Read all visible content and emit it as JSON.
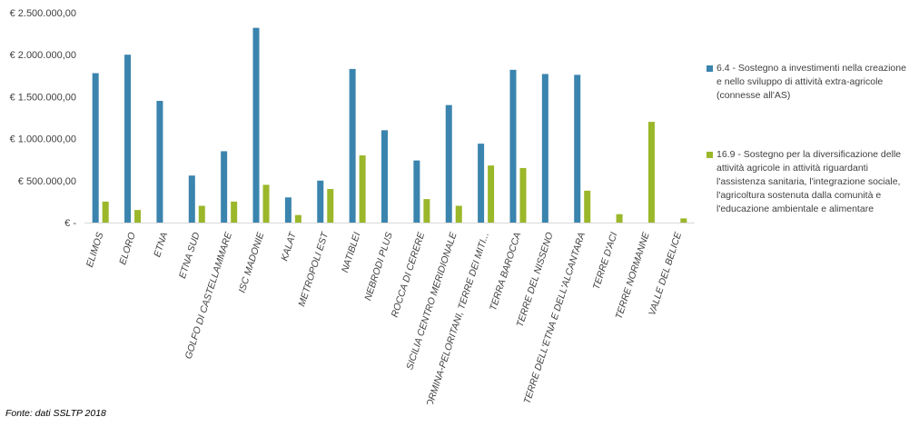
{
  "chart_data": {
    "type": "bar",
    "categories": [
      "ELIMOS",
      "ELORO",
      "ETNA",
      "ETNA SUD",
      "GOLFO DI CASTELLAMMARE",
      "ISC MADONIE",
      "KALAT",
      "METROPOLI EST",
      "NATIBLEI",
      "NEBRODI PLUS",
      "ROCCA DI CERERE",
      "SICILIA CENTRO MERIDIONALE",
      "TAORMINA-PELORITANI, TERRE DEI MITI...",
      "TERRA BAROCCA",
      "TERRE DEL NISSENO",
      "TERRE DELL'ETNA E DELL'ALCANTARA",
      "TERRE D'ACI",
      "TERRE NORMANNE",
      "VALLE DEL BELICE"
    ],
    "series": [
      {
        "name": "6.4 - Sostegno a investimenti nella creazione e nello sviluppo di attività extra-agricole (connesse all'AS)",
        "color": "#3A84AE",
        "values": [
          1780000,
          2000000,
          1450000,
          560000,
          850000,
          2320000,
          300000,
          500000,
          1830000,
          1100000,
          740000,
          1400000,
          940000,
          1820000,
          1770000,
          1760000,
          0,
          0,
          0
        ]
      },
      {
        "name": "16.9 - Sostegno per la diversificazione delle attività agricole in attività riguardanti l'assistenza sanitaria, l'integrazione sociale, l'agricoltura sostenuta dalla comunità e l'educazione ambientale e alimentare",
        "color": "#9BB72A",
        "values": [
          250000,
          150000,
          0,
          200000,
          250000,
          450000,
          90000,
          400000,
          800000,
          0,
          280000,
          200000,
          680000,
          650000,
          0,
          380000,
          100000,
          1200000,
          50000
        ]
      }
    ],
    "ylim": [
      0,
      2500000
    ],
    "y_ticks": [
      0,
      500000,
      1000000,
      1500000,
      2000000,
      2500000
    ],
    "y_tick_labels": [
      "€ -",
      "€ 500.000,00",
      "€ 1.000.000,00",
      "€ 1.500.000,00",
      "€ 2.000.000,00",
      "€ 2.500.000,00"
    ],
    "grid": false,
    "legend_position": "right"
  },
  "legend": {
    "item1": "6.4 - Sostegno a investimenti nella creazione e nello sviluppo di attività extra-agricole (connesse all'AS)",
    "item2": "16.9 - Sostegno per la diversificazione delle attività agricole in attività riguardanti l'assistenza sanitaria, l'integrazione sociale, l'agricoltura sostenuta dalla comunità e l'educazione ambientale e alimentare"
  },
  "source": "Fonte: dati SSLTP 2018"
}
